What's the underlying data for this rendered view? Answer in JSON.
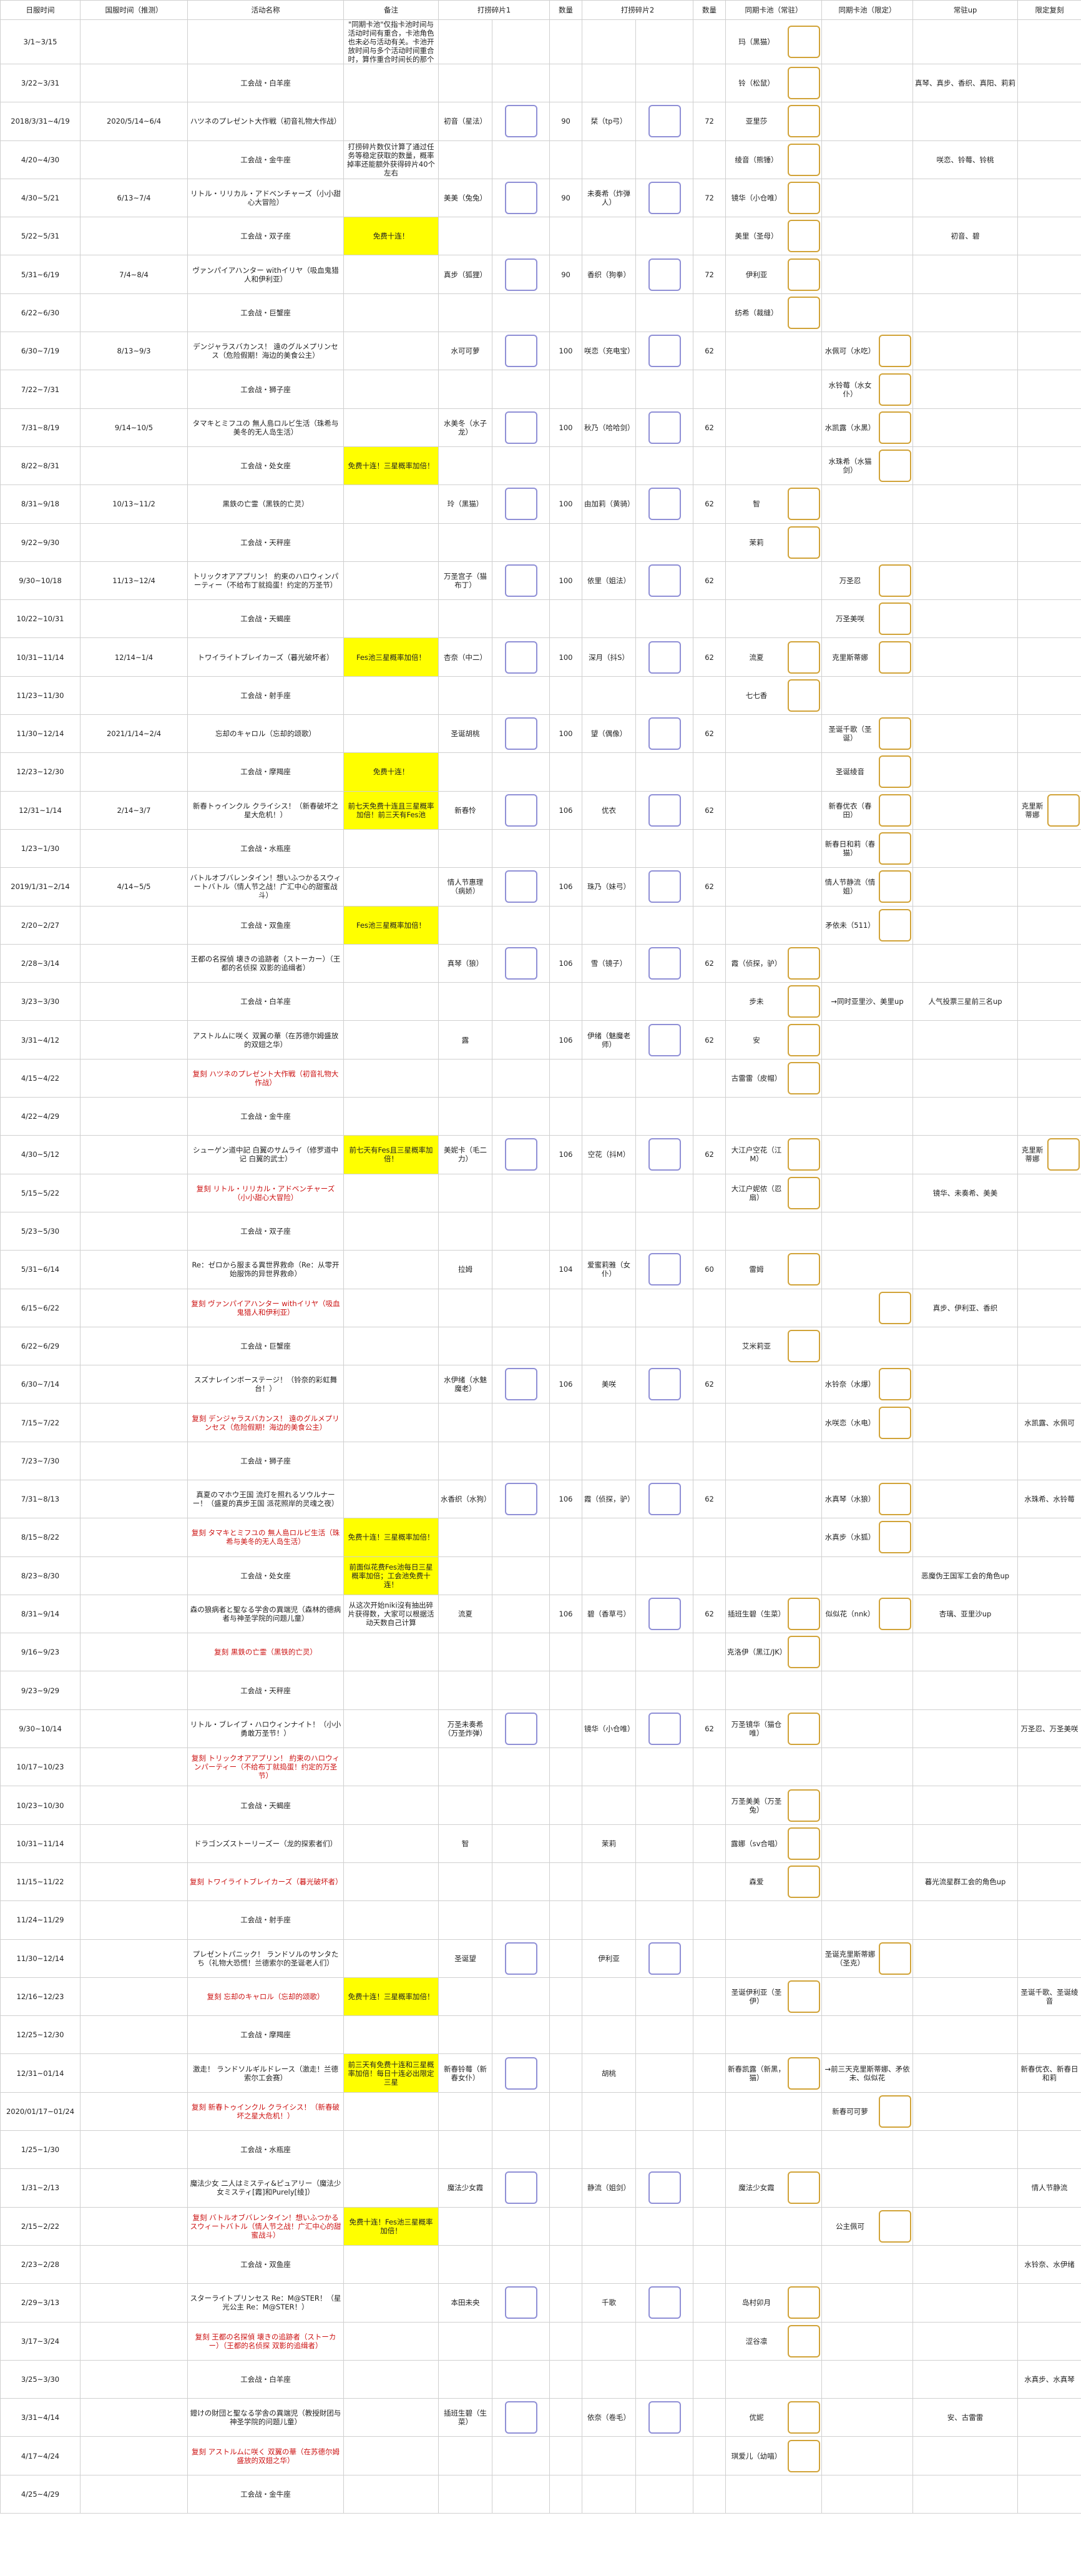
{
  "headers": [
    "日服时间",
    "国服时间（推测）",
    "活动名称",
    "备注",
    "打捞碎片1",
    "数量",
    "打捞碎片2",
    "数量",
    "同期卡池（常驻）",
    "同期卡池（限定）",
    "常驻up",
    "限定复刻"
  ],
  "rows": [
    {
      "jp": "3/1~3/15",
      "cn": "",
      "ev": "",
      "note": "\"同期卡池\"仅指卡池时间与活动时间有重合，卡池角色也未必与活动有关。卡池开放时间与多个活动时间重合时，算作重合时间长的那个",
      "f1": "",
      "n1": "",
      "f2": "",
      "n2": "",
      "pn": "玛（黑猫）",
      "pi": 1,
      "li": 0,
      "ln": "",
      "up": "",
      "lim": ""
    },
    {
      "jp": "3/22~3/31",
      "cn": "",
      "ev": "工会战・白羊座",
      "f1": "",
      "n1": "",
      "f2": "",
      "n2": "",
      "pn": "铃（松鼠）",
      "pi": 1,
      "up": "真琴、真步、香织、真阳、莉莉"
    },
    {
      "jp": "2018/3/31~4/19",
      "cn": "2020/5/14~6/4",
      "ev": "ハツネのプレゼント大作戦（初音礼物大作战）",
      "f1": "初音（星法）",
      "i1": 1,
      "n1": "90",
      "f2": "栞（tp弓）",
      "i2": 1,
      "n2": "72",
      "pn": "亚里莎",
      "pi": 1
    },
    {
      "jp": "4/20~4/30",
      "cn": "",
      "ev": "工会战・金牛座",
      "note": "打捞碎片数仅计算了通过任务等稳定获取的数量，概率掉率还能额外获得碎片40个左右",
      "pn": "绫音（熊锤）",
      "pi": 1,
      "up": "咲恋、铃莓、铃桃"
    },
    {
      "jp": "4/30~5/21",
      "cn": "6/13~7/4",
      "ev": "リトル・リリカル・アドベンチャーズ（小小甜心大冒险）",
      "f1": "美美（兔兔）",
      "i1": 1,
      "n1": "90",
      "f2": "未奏希（炸弹人）",
      "i2": 1,
      "n2": "72",
      "pn": "镜华（小仓唯）",
      "pi": 1
    },
    {
      "jp": "5/22~5/31",
      "cn": "",
      "ev": "工会战・双子座",
      "note": "免费十连！",
      "yl": 1,
      "pn": "美里（圣母）",
      "pi": 1,
      "up": "初音、碧"
    },
    {
      "jp": "5/31~6/19",
      "cn": "7/4~8/4",
      "ev": "ヴァンパイアハンター withイリヤ（吸血鬼猎人和伊利亚）",
      "f1": "真步（狐狸）",
      "i1": 1,
      "n1": "90",
      "f2": "香织（狗拳）",
      "i2": 1,
      "n2": "72",
      "pn": "伊利亚",
      "pi": 1
    },
    {
      "jp": "6/22~6/30",
      "cn": "",
      "ev": "工会战・巨蟹座",
      "pn": "纺希（裁缝）",
      "pi": 1
    },
    {
      "jp": "6/30~7/19",
      "cn": "8/13~9/3",
      "ev": "デンジャラスバカンス！ 遠のグルメプリンセス（危险假期！海边的美食公主）",
      "f1": "水可可萝",
      "i1": 1,
      "n1": "100",
      "f2": "咲恋（充电宝）",
      "i2": 1,
      "n2": "62",
      "ln": "水佩可（水吃）",
      "li": 1
    },
    {
      "jp": "7/22~7/31",
      "cn": "",
      "ev": "工会战・狮子座",
      "ln": "水铃莓（水女仆）",
      "li": 1
    },
    {
      "jp": "7/31~8/19",
      "cn": "9/14~10/5",
      "ev": "タマキとミフユの 無人島ロルビ生活（珠希与美冬的无人岛生活）",
      "f1": "水美冬（水子龙）",
      "i1": 1,
      "n1": "100",
      "f2": "秋乃（哈哈剑）",
      "i2": 1,
      "n2": "62",
      "ln": "水凯露（水黑）",
      "li": 1
    },
    {
      "jp": "8/22~8/31",
      "cn": "",
      "ev": "工会战・处女座",
      "note": "免费十连！三星概率加倍！",
      "yl": 1,
      "ln": "水珠希（水猫剑）",
      "li": 1
    },
    {
      "jp": "8/31~9/18",
      "cn": "10/13~11/2",
      "ev": "黒鉄の亡霊（黑铁的亡灵）",
      "f1": "玲（黑猫）",
      "i1": 1,
      "n1": "100",
      "f2": "由加莉（黄骑）",
      "i2": 1,
      "n2": "62",
      "pn": "智",
      "pi": 1
    },
    {
      "jp": "9/22~9/30",
      "cn": "",
      "ev": "工会战・天秤座",
      "pn": "茉莉",
      "pi": 1
    },
    {
      "jp": "9/30~10/18",
      "cn": "11/13~12/4",
      "ev": "トリックオアアプリン！ 約束のハロウィンパーティー（不给布丁就捣蛋！约定的万圣节）",
      "f1": "万圣宫子（猫布丁）",
      "i1": 1,
      "n1": "100",
      "f2": "依里（姐法）",
      "i2": 1,
      "n2": "62",
      "ln": "万圣忍",
      "li": 1
    },
    {
      "jp": "10/22~10/31",
      "cn": "",
      "ev": "工会战・天蝎座",
      "ln": "万圣美咲",
      "li": 1
    },
    {
      "jp": "10/31~11/14",
      "cn": "12/14~1/4",
      "ev": "トワイライトブレイカーズ（暮光破坏者）",
      "note": "Fes池三星概率加倍！",
      "yl": 1,
      "f1": "杏奈（中二）",
      "i1": 1,
      "n1": "100",
      "f2": "深月（抖S）",
      "i2": 1,
      "n2": "62",
      "pn": "流夏",
      "pi": 1,
      "ln": "克里斯蒂娜",
      "li": 1
    },
    {
      "jp": "11/23~11/30",
      "cn": "",
      "ev": "工会战・射手座",
      "pn": "七七香",
      "pi": 1
    },
    {
      "jp": "11/30~12/14",
      "cn": "2021/1/14~2/4",
      "ev": "忘却のキャロル（忘却的颂歌）",
      "f1": "圣诞胡桃",
      "i1": 1,
      "n1": "100",
      "f2": "望（偶像）",
      "i2": 1,
      "n2": "62",
      "ln": "圣诞千歌（圣诞）",
      "li": 1
    },
    {
      "jp": "12/23~12/30",
      "cn": "",
      "ev": "工会战・摩羯座",
      "note": "免费十连！",
      "yl": 1,
      "ln": "圣诞绫音",
      "li": 1
    },
    {
      "jp": "12/31~1/14",
      "cn": "2/14~3/7",
      "ev": "新春トゥインクル クライシス！（新春破坏之星大危机！）",
      "note": "前七天免费十连且三星概率加倍！前三天有Fes池",
      "yl": 1,
      "f1": "新春怜",
      "i1": 1,
      "n1": "106",
      "f2": "优衣",
      "i2": 1,
      "n2": "62",
      "ln": "新春优衣（春田）",
      "li": 1,
      "lim": "克里斯蒂娜"
    },
    {
      "jp": "1/23~1/30",
      "cn": "",
      "ev": "工会战・水瓶座",
      "ln": "新春日和莉（春猫）",
      "li": 1
    },
    {
      "jp": "2019/1/31~2/14",
      "cn": "4/14~5/5",
      "ev": "バトルオブバレンタイン！想いふつかるスウィートバトル（情人节之战！广汇中心的甜蜜战斗）",
      "f1": "情人节惠理（病娇）",
      "i1": 1,
      "n1": "106",
      "f2": "珠乃（妹弓）",
      "i2": 1,
      "n2": "62",
      "ln": "情人节静流（情姐）",
      "li": 1
    },
    {
      "jp": "2/20~2/27",
      "cn": "",
      "ev": "工会战・双鱼座",
      "note": "Fes池三星概率加倍！",
      "yl": 1,
      "ln": "矛依未（511）",
      "li": 1
    },
    {
      "jp": "2/28~3/14",
      "cn": "",
      "ev": "王都の名探偵 壊きの追跡者（ストーカー）（王都的名侦探 双影的追缉者）",
      "f1": "真琴（狼）",
      "i1": 1,
      "n1": "106",
      "f2": "雪（镜子）",
      "i2": 1,
      "n2": "62",
      "pn": "霞（侦探，驴）",
      "pi": 1
    },
    {
      "jp": "3/23~3/30",
      "cn": "",
      "ev": "工会战・白羊座",
      "pn": "步未",
      "pi": 1,
      "ln": "→同时亚里沙、美里up",
      "up": "人气投票三星前三名up"
    },
    {
      "jp": "3/31~4/12",
      "cn": "",
      "ev": "アストルムに咲く 双翼の華（在苏德尔姆盛放的双翅之华）",
      "f1": "露",
      "n1": "106",
      "f2": "伊绪（魅魔老师）",
      "i2": 1,
      "n2": "62",
      "pn": "安",
      "pi": 1
    },
    {
      "jp": "4/15~4/22",
      "cn": "",
      "ev": "复刻 ハツネのプレゼント大作戦（初音礼物大作战）",
      "red": 1,
      "pn": "古雷雷（皮帽）",
      "pi": 1
    },
    {
      "jp": "4/22~4/29",
      "cn": "",
      "ev": "工会战・金牛座"
    },
    {
      "jp": "4/30~5/12",
      "cn": "",
      "ev": "シューゲン道中記 白翼のサムライ（修罗道中记 白翼的武士）",
      "note": "前七天有Fes且三星概率加倍！",
      "yl": 1,
      "f1": "美妮卡（毛二力）",
      "i1": 1,
      "n1": "106",
      "f2": "空花（抖M）",
      "i2": 1,
      "n2": "62",
      "pn": "大江户空花（江M）",
      "pi": 1,
      "lim": "克里斯蒂娜"
    },
    {
      "jp": "5/15~5/22",
      "cn": "",
      "ev": "复刻 リトル・リリカル・アドベンチャーズ（小小甜心大冒险）",
      "red": 1,
      "pn": "大江户妮侬（忍扇）",
      "pi": 1,
      "up": "镜华、未奏希、美美"
    },
    {
      "jp": "5/23~5/30",
      "cn": "",
      "ev": "工会战・双子座"
    },
    {
      "jp": "5/31~6/14",
      "cn": "",
      "ev": "Re：ゼロから服まる異世界救命（Re：从零开始服饰的异世界救命）",
      "f1": "拉姆",
      "n1": "104",
      "f2": "爱蜜莉雅（女仆）",
      "i2": 1,
      "n2": "60",
      "pn": "雷姆",
      "pi": 1
    },
    {
      "jp": "6/15~6/22",
      "cn": "",
      "ev": "复刻 ヴァンパイアハンター withイリヤ（吸血鬼猎人和伊利亚）",
      "red": 1,
      "ln": "",
      "li": 1,
      "up": "真步、伊利亚、香织"
    },
    {
      "jp": "6/22~6/29",
      "cn": "",
      "ev": "工会战・巨蟹座",
      "pn": "艾米莉亚",
      "pi": 1
    },
    {
      "jp": "6/30~7/14",
      "cn": "",
      "ev": "スズナレインボーステージ！（铃奈的彩虹舞台！）",
      "f1": "水伊绪（水魅魔老）",
      "i1": 1,
      "n1": "106",
      "f2": "美咲",
      "i2": 1,
      "n2": "62",
      "ln": "水铃奈（水爆）",
      "li": 1
    },
    {
      "jp": "7/15~7/22",
      "cn": "",
      "ev": "复刻 デンジャラスバカンス！ 遠のグルメプリンセス（危险假期！海边的美食公主）",
      "red": 1,
      "ln": "水咲恋（水电）",
      "li": 1,
      "lim": "水凯露、水佩可"
    },
    {
      "jp": "7/23~7/30",
      "cn": "",
      "ev": "工会战・狮子座"
    },
    {
      "jp": "7/31~8/13",
      "cn": "",
      "ev": "真夏のマホウ王国 流灯を照れるソウルナーー！（盛夏的真步王国 派花照岸的灵魂之夜）",
      "f1": "水香织（水狗）",
      "i1": 1,
      "n1": "106",
      "f2": "霞（侦探，驴）",
      "i2": 1,
      "n2": "62",
      "ln": "水真琴（水狼）",
      "li": 1,
      "lim": "水珠希、水铃莓"
    },
    {
      "jp": "8/15~8/22",
      "cn": "",
      "ev": "复刻 タマキとミフユの 無人島ロルビ生活（珠希与美冬的无人岛生活）",
      "red": 1,
      "note": "免费十连！三星概率加倍！",
      "yl": 1,
      "ln": "水真步（水狐）",
      "li": 1
    },
    {
      "jp": "8/23~8/30",
      "cn": "",
      "ev": "工会战・处女座",
      "note": "前面似花费Fes池每日三星概率加倍；工会池免费十连！",
      "yl": 1,
      "up": "恶魔伪王国军工会的角色up"
    },
    {
      "jp": "8/31~9/14",
      "cn": "",
      "ev": "森の狼病者と聖なる学舎の異端児（森林的德病者与神圣学院的问题儿童）",
      "note": "从这次开始niki沒有抽出碎片获得数，大家可以根据活动天数自己计算",
      "f1": "流夏",
      "n1": "106",
      "f2": "碧（香草弓）",
      "i2": 1,
      "n2": "62",
      "pn": "插班生碧（生菜）",
      "pi": 1,
      "ln": "似似花（nnk）",
      "li": 1,
      "up": "杏璃、亚里沙up"
    },
    {
      "jp": "9/16~9/23",
      "cn": "",
      "ev": "复刻 黒鉄の亡霊（黑铁的亡灵）",
      "red": 1,
      "pn": "克洛伊（黑江/JK）",
      "pi": 1
    },
    {
      "jp": "9/23~9/29",
      "cn": "",
      "ev": "工会战・天秤座"
    },
    {
      "jp": "9/30~10/14",
      "cn": "",
      "ev": "リトル・ブレイブ・ハロウィンナイト！（小小勇敢万圣节！）",
      "f1": "万圣未奏希（万圣炸弹）",
      "i1": 1,
      "n1": "",
      "f2": "镜华（小仓唯）",
      "i2": 1,
      "n2": "62",
      "pn": "万圣镜华（猫仓唯）",
      "pi": 1,
      "lim": "万圣忍、万圣美咲"
    },
    {
      "jp": "10/17~10/23",
      "cn": "",
      "ev": "复刻 トリックオアアプリン！ 約束のハロウィンパーティー（不给布丁就捣蛋！约定的万圣节）",
      "red": 1,
      "pn": "",
      "pi": 0
    },
    {
      "jp": "10/23~10/30",
      "cn": "",
      "ev": "工会战・天蝎座",
      "pn": "万圣美美（万圣兔）",
      "pi": 1
    },
    {
      "jp": "10/31~11/14",
      "cn": "",
      "ev": "ドラゴンズストーリーズー（龙的探索者们）",
      "f1": "智",
      "n1": "",
      "f2": "茉莉",
      "n2": "",
      "pn": "露娜（sv合唱）",
      "pi": 1
    },
    {
      "jp": "11/15~11/22",
      "cn": "",
      "ev": "复刻 トワイライトブレイカーズ（暮光破坏者）",
      "red": 1,
      "pn": "森爱",
      "pi": 1,
      "up": "暮光流星群工会的角色up"
    },
    {
      "jp": "11/24~11/29",
      "cn": "",
      "ev": "工会战・射手座"
    },
    {
      "jp": "11/30~12/14",
      "cn": "",
      "ev": "プレゼントパニック！ ランドソルのサンタたち（礼物大恐慌！兰德索尔的圣诞老人们）",
      "f1": "圣诞望",
      "i1": 1,
      "n1": "",
      "f2": "伊利亚",
      "i2": 1,
      "n2": "",
      "ln": "圣诞克里斯蒂娜（圣克）",
      "li": 1
    },
    {
      "jp": "12/16~12/23",
      "cn": "",
      "ev": "复刻 忘却のキャロル（忘却的颂歌）",
      "red": 1,
      "note": "免费十连！三星概率加倍！",
      "yl": 1,
      "pn": "圣诞伊利亚（圣伊）",
      "pi": 1,
      "lim": "圣诞千歌、圣诞绫音"
    },
    {
      "jp": "12/25~12/30",
      "cn": "",
      "ev": "工会战・摩羯座"
    },
    {
      "jp": "12/31~01/14",
      "cn": "",
      "ev": "激走！ ランドソルギルドレース（激走！兰德索尔工会赛）",
      "note": "前三天有免费十连和三星概率加倍！每日十连必出限定三星",
      "yl": 1,
      "f1": "新春铃莓（新春女仆）",
      "i1": 1,
      "n1": "",
      "f2": "胡桃",
      "n2": "",
      "pn": "新春凯露（新黑，猫）",
      "pi": 1,
      "ln": "→前三天克里斯蒂娜、矛依未、似似花",
      "up": "",
      "lim": "新春优衣、新春日和莉"
    },
    {
      "jp": "2020/01/17~01/24",
      "cn": "",
      "ev": "复刻 新春トゥインクル クライシス！（新春破坏之星大危机！）",
      "red": 1,
      "ln": "新春可可萝",
      "li": 1
    },
    {
      "jp": "1/25~1/30",
      "cn": "",
      "ev": "工会战・水瓶座"
    },
    {
      "jp": "1/31~2/13",
      "cn": "",
      "ev": "魔法少女 二人はミスティ&ピュアリー（魔法少女ミスティ[霞]和Purely[绫]）",
      "f1": "魔法少女霞",
      "i1": 1,
      "n1": "",
      "f2": "静流（姐剑）",
      "i2": 1,
      "n2": "",
      "pn": "魔法少女霞",
      "pi": 1,
      "lim": "情人节静流"
    },
    {
      "jp": "2/15~2/22",
      "cn": "",
      "ev": "复刻 バトルオブバレンタイン！想いふつかるスウィートバトル（情人节之战！广汇中心的甜蜜战斗）",
      "red": 1,
      "note": "免费十连！Fes池三星概率加倍！",
      "yl": 1,
      "ln": "公主佩可",
      "li": 1
    },
    {
      "jp": "2/23~2/28",
      "cn": "",
      "ev": "工会战・双鱼座",
      "lim": "水铃奈、水伊绪"
    },
    {
      "jp": "2/29~3/13",
      "cn": "",
      "ev": "スターライトプリンセス Re：M@STER！（星光公主 Re：M@STER！）",
      "f1": "本田未央",
      "i1": 1,
      "n1": "",
      "f2": "千歌",
      "i2": 1,
      "n2": "",
      "pn": "岛村卯月",
      "pi": 1
    },
    {
      "jp": "3/17~3/24",
      "cn": "",
      "ev": "复刻 王都の名探偵 壊きの追跡者（ストーカー）（王都的名侦探 双影的追缉者）",
      "red": 1,
      "pn": "涩谷凛",
      "pi": 1
    },
    {
      "jp": "3/25~3/30",
      "cn": "",
      "ev": "工会战・白羊座",
      "lim": "水真步、水真琴"
    },
    {
      "jp": "3/31~4/14",
      "cn": "",
      "ev": "鐙けの財団と聖なる学舎の異端児（教授財团与神圣学院的问题儿童）",
      "f1": "插班生碧（生菜）",
      "i1": 1,
      "n1": "",
      "f2": "依奈（卷毛）",
      "i2": 1,
      "n2": "",
      "pn": "优妮",
      "pi": 1,
      "up": "安、古雷雷"
    },
    {
      "jp": "4/17~4/24",
      "cn": "",
      "ev": "复刻 アストルムに咲く 双翼の華（在苏德尔姆盛放的双翅之华）",
      "red": 1,
      "pn": "琪爱儿（幼喵）",
      "pi": 1
    },
    {
      "jp": "4/25~4/29",
      "cn": "",
      "ev": "工会战・金牛座"
    }
  ]
}
